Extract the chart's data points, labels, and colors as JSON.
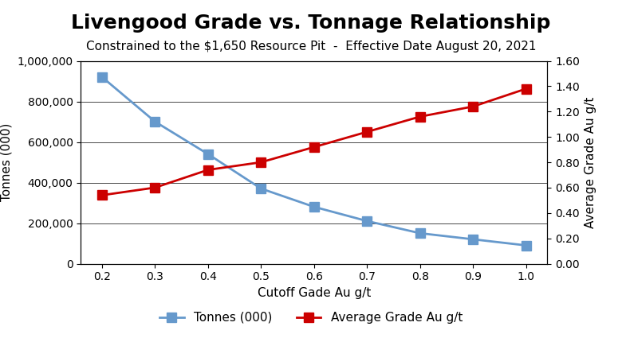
{
  "title": "Livengood Grade vs. Tonnage Relationship",
  "subtitle": "Constrained to the $1,650 Resource Pit  -  Effective Date August 20, 2021",
  "xlabel": "Cutoff Gade Au g/t",
  "ylabel_left": "Tonnes (000)",
  "ylabel_right": "Average Grade Au g/t",
  "cutoff": [
    0.2,
    0.3,
    0.4,
    0.5,
    0.6,
    0.7,
    0.8,
    0.9,
    1.0
  ],
  "tonnes": [
    920000,
    700000,
    540000,
    370000,
    280000,
    210000,
    150000,
    120000,
    90000
  ],
  "grade": [
    0.54,
    0.6,
    0.74,
    0.8,
    0.92,
    1.04,
    1.16,
    1.24,
    1.38
  ],
  "tonnes_color": "#6699CC",
  "grade_color": "#CC0000",
  "marker_style": "s",
  "line_width": 2.0,
  "marker_size": 8,
  "ylim_left": [
    0,
    1000000
  ],
  "ylim_right": [
    0.0,
    1.6
  ],
  "yticks_left": [
    0,
    200000,
    400000,
    600000,
    800000,
    1000000
  ],
  "yticks_right": [
    0.0,
    0.2,
    0.4,
    0.6,
    0.8,
    1.0,
    1.2,
    1.4,
    1.6
  ],
  "legend_labels": [
    "Tonnes (000)",
    "Average Grade Au g/t"
  ],
  "background_color": "#FFFFFF",
  "title_fontsize": 18,
  "subtitle_fontsize": 11,
  "axis_label_fontsize": 11,
  "tick_fontsize": 10,
  "legend_fontsize": 11
}
